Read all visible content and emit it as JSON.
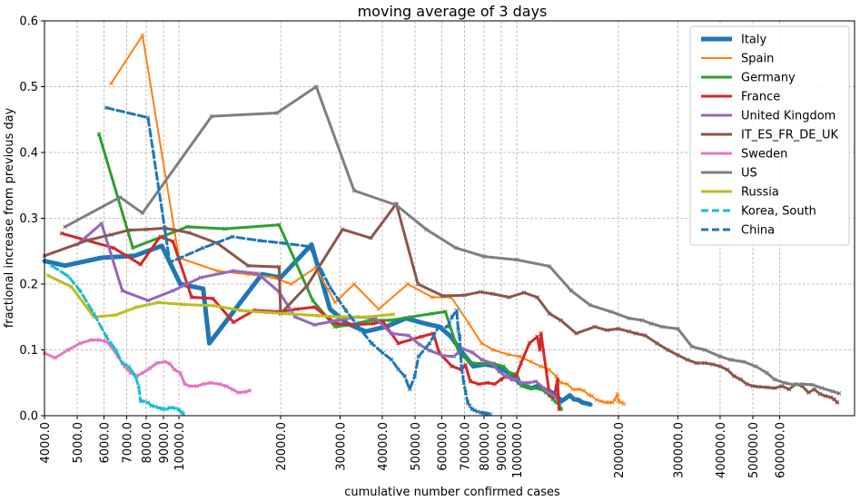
{
  "chart_data": {
    "type": "line",
    "title": "moving average of 3 days",
    "xlabel": "cumulative number confirmed cases",
    "ylabel": "fractional increase from previous day",
    "xscale": "log",
    "xlim": [
      4000,
      1000000
    ],
    "ylim": [
      0,
      0.6
    ],
    "grid": true,
    "legend_position": "top-right",
    "x_tick_labels": [
      "4000.0",
      "5000.0",
      "6000.0",
      "7000.0",
      "8000.0",
      "9000.0",
      "10000.0",
      "20000.0",
      "30000.0",
      "40000.0",
      "50000.0",
      "60000.0",
      "70000.0",
      "80000.0",
      "90000.0",
      "100000.0",
      "200000.0",
      "300000.0",
      "400000.0",
      "500000.0",
      "600000.0"
    ],
    "x_ticks": [
      4000,
      5000,
      6000,
      7000,
      8000,
      9000,
      10000,
      20000,
      30000,
      40000,
      50000,
      60000,
      70000,
      80000,
      90000,
      100000,
      200000,
      300000,
      400000,
      500000,
      600000
    ],
    "y_tick_labels": [
      "0.0",
      "0.1",
      "0.2",
      "0.3",
      "0.4",
      "0.5",
      "0.6"
    ],
    "y_ticks": [
      0,
      0.1,
      0.2,
      0.3,
      0.4,
      0.5,
      0.6
    ],
    "series": [
      {
        "name": "Italy",
        "color": "#1f77b4",
        "style": "solid",
        "width": 5,
        "marker": "none",
        "x": [
          4000,
          4600,
          5900,
          7400,
          8900,
          10100,
          11800,
          12300,
          17600,
          20000,
          24700,
          28000,
          31500,
          35700,
          41000,
          47000,
          53500,
          59100,
          63900,
          69200,
          74400,
          80500,
          86500,
          92500,
          97700,
          101700,
          105800,
          110500,
          115200,
          119800,
          124600,
          128900,
          132500,
          135600,
          139400,
          143600,
          147500,
          152300,
          156400,
          159500,
          162500,
          165200
        ],
        "y": [
          0.235,
          0.228,
          0.24,
          0.243,
          0.258,
          0.2,
          0.193,
          0.11,
          0.215,
          0.21,
          0.26,
          0.162,
          0.14,
          0.128,
          0.135,
          0.148,
          0.14,
          0.135,
          0.12,
          0.095,
          0.075,
          0.078,
          0.075,
          0.068,
          0.06,
          0.05,
          0.045,
          0.042,
          0.045,
          0.04,
          0.038,
          0.033,
          0.028,
          0.022,
          0.026,
          0.031,
          0.025,
          0.024,
          0.02,
          0.019,
          0.018,
          0.017
        ]
      },
      {
        "name": "Spain",
        "color": "#ff7f0e",
        "style": "solid",
        "width": 2,
        "marker": "x",
        "x": [
          6300,
          7800,
          10000,
          13000,
          16000,
          19000,
          21500,
          25400,
          29000,
          33000,
          39000,
          47600,
          56200,
          64000,
          72200,
          78700,
          85200,
          94400,
          102100,
          110200,
          117700,
          124700,
          130800,
          135000,
          141000,
          146700,
          153000,
          158000,
          163000,
          166800,
          172500,
          177600,
          182700,
          188000,
          192000,
          195000,
          198700,
          200200,
          204200,
          207600
        ],
        "y": [
          0.505,
          0.578,
          0.24,
          0.22,
          0.215,
          0.21,
          0.2,
          0.225,
          0.172,
          0.2,
          0.162,
          0.2,
          0.18,
          0.18,
          0.14,
          0.11,
          0.1,
          0.093,
          0.09,
          0.082,
          0.075,
          0.07,
          0.06,
          0.05,
          0.048,
          0.04,
          0.04,
          0.038,
          0.032,
          0.03,
          0.024,
          0.022,
          0.02,
          0.02,
          0.02,
          0.024,
          0.033,
          0.022,
          0.02,
          0.018
        ]
      },
      {
        "name": "Germany",
        "color": "#2ca02c",
        "style": "solid",
        "width": 3,
        "marker": "x",
        "x": [
          5800,
          7300,
          10600,
          13700,
          19800,
          24900,
          29000,
          32000,
          37000,
          42300,
          48500,
          56000,
          61500,
          67400,
          73500,
          79600,
          85400,
          91200,
          95400,
          100100,
          103300,
          107700,
          113300,
          118200,
          122200,
          125500,
          127900,
          130100,
          131400,
          133800,
          135300
        ],
        "y": [
          0.428,
          0.255,
          0.287,
          0.284,
          0.29,
          0.175,
          0.135,
          0.138,
          0.145,
          0.145,
          0.15,
          0.155,
          0.158,
          0.095,
          0.08,
          0.079,
          0.079,
          0.075,
          0.065,
          0.063,
          0.045,
          0.043,
          0.042,
          0.04,
          0.035,
          0.03,
          0.025,
          0.022,
          0.02,
          0.015,
          0.01
        ]
      },
      {
        "name": "France",
        "color": "#d62728",
        "style": "solid",
        "width": 3,
        "marker": "x",
        "x": [
          4500,
          6400,
          7700,
          8800,
          9600,
          10900,
          12600,
          14500,
          16700,
          19900,
          22300,
          25200,
          29200,
          32900,
          37600,
          40200,
          44600,
          52100,
          56600,
          59000,
          64300,
          68600,
          70500,
          72900,
          77300,
          82000,
          86000,
          89900,
          92800,
          97000,
          99500,
          103000,
          109000,
          115000,
          117000,
          118000,
          125000,
          129000,
          132000,
          133500
        ],
        "y": [
          0.277,
          0.255,
          0.23,
          0.272,
          0.265,
          0.18,
          0.178,
          0.142,
          0.16,
          0.158,
          0.162,
          0.165,
          0.14,
          0.138,
          0.14,
          0.143,
          0.11,
          0.12,
          0.125,
          0.095,
          0.075,
          0.07,
          0.077,
          0.052,
          0.048,
          0.05,
          0.048,
          0.055,
          0.06,
          0.055,
          0.06,
          0.08,
          0.11,
          0.12,
          0.1,
          0.125,
          0.032,
          0.028,
          0.055,
          0.01
        ]
      },
      {
        "name": "United Kingdom",
        "color": "#9467bd",
        "style": "solid",
        "width": 3,
        "marker": "x",
        "x": [
          5000,
          5900,
          6800,
          8100,
          9600,
          11600,
          14500,
          17100,
          19800,
          22100,
          25200,
          29500,
          33700,
          38200,
          42500,
          47800,
          51600,
          55200,
          60700,
          65100,
          69100,
          74000,
          78900,
          84300,
          88600,
          93900,
          99500,
          103000,
          108000,
          114000,
          120000,
          124000,
          128000,
          130000
        ],
        "y": [
          0.26,
          0.292,
          0.19,
          0.175,
          0.19,
          0.21,
          0.22,
          0.216,
          0.188,
          0.15,
          0.138,
          0.145,
          0.15,
          0.148,
          0.125,
          0.122,
          0.108,
          0.099,
          0.091,
          0.09,
          0.102,
          0.096,
          0.085,
          0.08,
          0.067,
          0.058,
          0.055,
          0.05,
          0.05,
          0.052,
          0.042,
          0.035,
          0.032,
          0.028
        ]
      },
      {
        "name": "IT_ES_FR_DE_UK",
        "color": "#8c564b",
        "style": "solid",
        "width": 3,
        "marker": "x",
        "x": [
          4000,
          5400,
          6300,
          7100,
          8000,
          9100,
          10700,
          13000,
          16000,
          19800,
          20000,
          24000,
          30500,
          37000,
          44000,
          51000,
          60500,
          70000,
          78000,
          85000,
          95000,
          105000,
          115000,
          125000,
          135000,
          150000,
          170000,
          185000,
          200000,
          215000,
          225000,
          240000,
          260000,
          280000,
          300000,
          320000,
          340000,
          360000,
          380000,
          400000,
          420000,
          440000,
          460000,
          480000,
          500000,
          520000,
          550000,
          580000,
          610000,
          640000,
          670000,
          700000,
          730000,
          760000,
          790000,
          820000,
          850000,
          870000,
          890000
        ],
        "y": [
          0.243,
          0.267,
          0.275,
          0.282,
          0.283,
          0.285,
          0.278,
          0.262,
          0.228,
          0.226,
          0.155,
          0.198,
          0.283,
          0.27,
          0.322,
          0.2,
          0.182,
          0.183,
          0.188,
          0.185,
          0.18,
          0.187,
          0.18,
          0.155,
          0.145,
          0.125,
          0.135,
          0.13,
          0.132,
          0.128,
          0.125,
          0.122,
          0.11,
          0.1,
          0.092,
          0.085,
          0.08,
          0.08,
          0.078,
          0.075,
          0.07,
          0.06,
          0.055,
          0.048,
          0.045,
          0.044,
          0.043,
          0.042,
          0.045,
          0.04,
          0.048,
          0.045,
          0.035,
          0.04,
          0.033,
          0.03,
          0.028,
          0.025,
          0.02
        ]
      },
      {
        "name": "Sweden",
        "color": "#e377c2",
        "style": "solid",
        "width": 3,
        "marker": "x",
        "x": [
          4000,
          4300,
          4700,
          5100,
          5500,
          5800,
          6100,
          6300,
          6600,
          6900,
          7200,
          7500,
          7800,
          8200,
          8600,
          9100,
          9400,
          9700,
          10100,
          10400,
          10800,
          11300,
          11800,
          12400,
          13200,
          13800,
          14400,
          15000,
          15700,
          16200
        ],
        "y": [
          0.095,
          0.088,
          0.1,
          0.11,
          0.115,
          0.115,
          0.113,
          0.105,
          0.09,
          0.075,
          0.065,
          0.06,
          0.065,
          0.072,
          0.08,
          0.082,
          0.079,
          0.07,
          0.065,
          0.048,
          0.045,
          0.045,
          0.048,
          0.05,
          0.048,
          0.045,
          0.04,
          0.035,
          0.036,
          0.038
        ]
      },
      {
        "name": "US",
        "color": "#7f7f7f",
        "style": "solid",
        "width": 3,
        "marker": "x",
        "x": [
          4600,
          6700,
          7800,
          12500,
          19500,
          25500,
          33000,
          44000,
          54000,
          66000,
          80000,
          100000,
          125000,
          145000,
          165000,
          190000,
          215000,
          235000,
          250000,
          270000,
          300000,
          330000,
          360000,
          400000,
          430000,
          470000,
          510000,
          550000,
          580000,
          620000,
          660000,
          700000,
          750000,
          800000,
          860000,
          900000
        ],
        "y": [
          0.287,
          0.332,
          0.308,
          0.455,
          0.46,
          0.5,
          0.342,
          0.32,
          0.283,
          0.255,
          0.242,
          0.237,
          0.227,
          0.19,
          0.168,
          0.158,
          0.148,
          0.145,
          0.14,
          0.135,
          0.132,
          0.105,
          0.1,
          0.09,
          0.085,
          0.082,
          0.075,
          0.065,
          0.055,
          0.05,
          0.047,
          0.048,
          0.047,
          0.042,
          0.037,
          0.034
        ]
      },
      {
        "name": "Russia",
        "color": "#bcbd22",
        "style": "solid",
        "width": 3,
        "marker": "x",
        "x": [
          4100,
          4800,
          5600,
          6500,
          7500,
          8700,
          10300,
          12800,
          15200,
          18200,
          21000,
          25700,
          30500,
          36000,
          43100
        ],
        "y": [
          0.213,
          0.196,
          0.15,
          0.153,
          0.165,
          0.172,
          0.169,
          0.167,
          0.16,
          0.157,
          0.155,
          0.152,
          0.15,
          0.15,
          0.154
        ]
      },
      {
        "name": "Korea, South",
        "color": "#17becf",
        "style": "dashed",
        "width": 3,
        "marker": "x",
        "x": [
          4200,
          4700,
          5100,
          5600,
          6100,
          6500,
          6800,
          7100,
          7400,
          7600,
          7700,
          7900,
          8100,
          8300,
          8500,
          8700,
          8900,
          9000,
          9200,
          9400,
          9600,
          9800,
          10000,
          10200,
          10300
        ],
        "y": [
          0.228,
          0.212,
          0.19,
          0.155,
          0.12,
          0.1,
          0.08,
          0.075,
          0.062,
          0.045,
          0.022,
          0.022,
          0.02,
          0.015,
          0.014,
          0.012,
          0.011,
          0.01,
          0.01,
          0.012,
          0.012,
          0.011,
          0.009,
          0.005,
          0.003
        ]
      },
      {
        "name": "China",
        "color": "#1f77b4",
        "style": "dashed",
        "width": 3,
        "marker": "x",
        "x": [
          6100,
          8100,
          9400,
          11800,
          14400,
          17300,
          20500,
          24400,
          28000,
          31200,
          34600,
          37200,
          40200,
          42600,
          44700,
          46600,
          48200,
          49900,
          51200,
          55200,
          58700,
          62400,
          64300,
          66400,
          67100,
          67800,
          68600,
          69700,
          70600,
          71600,
          72600,
          73800,
          75100,
          76700,
          78200,
          79400,
          80300,
          81500,
          82600,
          83700
        ],
        "y": [
          0.468,
          0.453,
          0.233,
          0.255,
          0.272,
          0.266,
          0.262,
          0.257,
          0.195,
          0.16,
          0.13,
          0.11,
          0.095,
          0.085,
          0.07,
          0.06,
          0.04,
          0.06,
          0.09,
          0.11,
          0.135,
          0.135,
          0.15,
          0.16,
          0.13,
          0.12,
          0.075,
          0.05,
          0.035,
          0.02,
          0.015,
          0.01,
          0.008,
          0.006,
          0.005,
          0.004,
          0.004,
          0.003,
          0.003,
          0.002
        ]
      }
    ]
  }
}
